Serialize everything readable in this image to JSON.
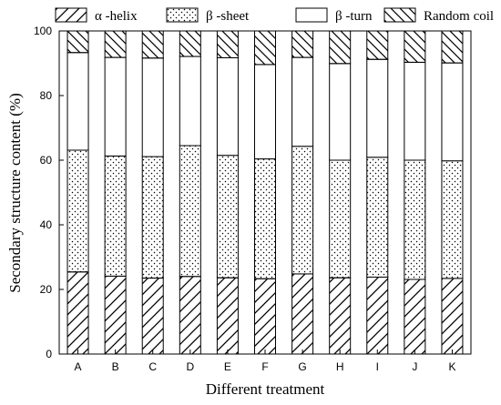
{
  "chart_data": {
    "type": "bar",
    "stacked": true,
    "xlabel": "Different treatment",
    "ylabel": "Secondary structure content (%)",
    "ylim": [
      0,
      100
    ],
    "yticks": [
      0,
      20,
      40,
      60,
      80,
      100
    ],
    "grid": false,
    "legend_position": "top",
    "categories": [
      "A",
      "B",
      "C",
      "D",
      "E",
      "F",
      "G",
      "H",
      "I",
      "J",
      "K"
    ],
    "series": [
      {
        "name": "α -helix",
        "pattern": "diagonal-hatch",
        "values": [
          25.4,
          24.1,
          23.5,
          24.0,
          23.6,
          23.3,
          24.8,
          23.6,
          23.8,
          23.1,
          23.4
        ]
      },
      {
        "name": "β -sheet",
        "pattern": "dots",
        "values": [
          37.7,
          37.2,
          37.6,
          40.5,
          37.9,
          37.1,
          39.5,
          36.4,
          37.1,
          36.9,
          36.4
        ]
      },
      {
        "name": "β -turn",
        "pattern": "blank",
        "values": [
          30.2,
          30.5,
          30.5,
          27.6,
          30.2,
          29.2,
          27.5,
          29.9,
          30.3,
          30.3,
          30.3
        ]
      },
      {
        "name": "Random coil",
        "pattern": "back-diagonal-hatch",
        "values": [
          6.7,
          8.2,
          8.4,
          7.9,
          8.3,
          10.4,
          8.2,
          10.1,
          8.8,
          9.7,
          9.9
        ]
      }
    ]
  }
}
